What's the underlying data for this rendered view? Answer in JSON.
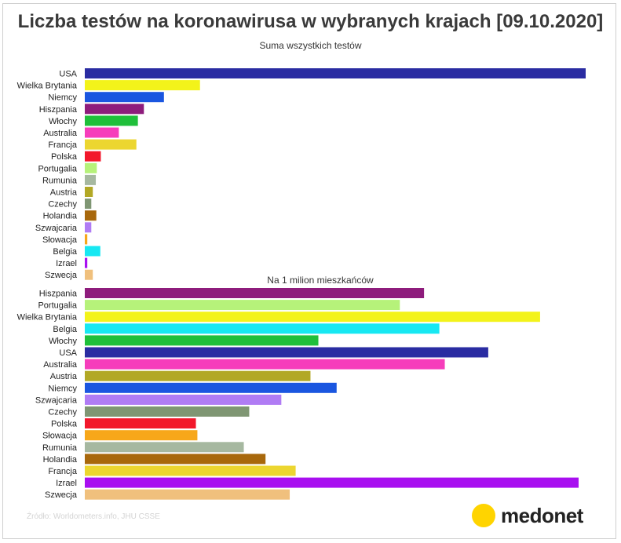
{
  "title": "Liczba testów na koronawirusa w wybranych krajach [09.10.2020]",
  "source": "Źródło: Worldometers.info, JHU CSSE",
  "logo_text": "medonet",
  "colors": {
    "USA": "#2a2ca2",
    "Wielka Brytania": "#f3f31a",
    "Niemcy": "#1a56e0",
    "Hiszpania": "#8e1c7c",
    "Włochy": "#1fbf3a",
    "Australia": "#f63dbb",
    "Francja": "#ecd630",
    "Polska": "#f2172b",
    "Portugalia": "#b6f27a",
    "Rumunia": "#a6b8a0",
    "Austria": "#b2a825",
    "Czechy": "#7f9673",
    "Holandia": "#a8680c",
    "Szwajcaria": "#b07cf4",
    "Słowacja": "#f7a71a",
    "Belgia": "#17e8f2",
    "Izrael": "#a80ff0",
    "Szwecja": "#f0c07d"
  },
  "chart_data": [
    {
      "type": "bar",
      "title": "Suma wszystkich testów",
      "orientation": "horizontal",
      "categories": [
        "USA",
        "Wielka Brytania",
        "Niemcy",
        "Hiszpania",
        "Włochy",
        "Australia",
        "Francja",
        "Polska",
        "Portugalia",
        "Rumunia",
        "Austria",
        "Czechy",
        "Holandia",
        "Szwajcaria",
        "Słowacja",
        "Belgia",
        "Izrael",
        "Szwecja"
      ],
      "values": [
        100,
        23,
        15.8,
        11.8,
        10.6,
        6.8,
        10.3,
        3.2,
        2.4,
        2.2,
        1.6,
        1.3,
        2.3,
        1.3,
        0.5,
        3.1,
        0.5,
        1.6
      ],
      "xlim": [
        0,
        100
      ]
    },
    {
      "type": "bar",
      "title": "Na 1 milion mieszkańców",
      "orientation": "horizontal",
      "categories": [
        "Hiszpania",
        "Portugalia",
        "Wielka Brytania",
        "Belgia",
        "Włochy",
        "USA",
        "Australia",
        "Austria",
        "Niemcy",
        "Szwajcaria",
        "Czechy",
        "Polska",
        "Słowacja",
        "Rumunia",
        "Holandia",
        "Francja",
        "Izrael",
        "Szwecja"
      ],
      "values": [
        68.7,
        63.8,
        92.2,
        71.8,
        47.3,
        81.7,
        72.9,
        45.7,
        51.0,
        39.8,
        33.3,
        22.5,
        22.8,
        32.2,
        36.6,
        42.7,
        100,
        41.5
      ],
      "xlim": [
        0,
        100
      ]
    }
  ]
}
